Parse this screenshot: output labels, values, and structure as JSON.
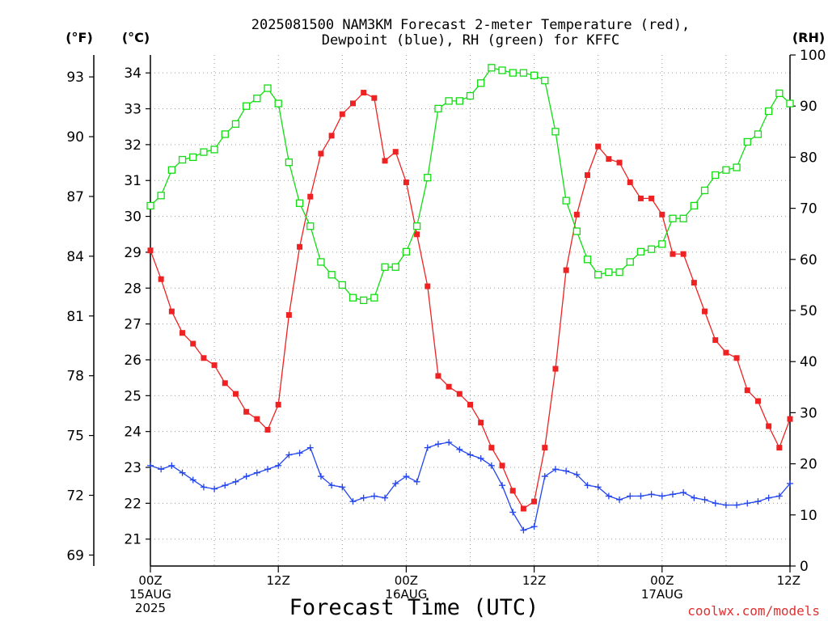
{
  "chart_data": {
    "type": "line",
    "title_lines": [
      "2025081500 NAM3KM Forecast 2-meter Temperature (red),",
      "Dewpoint (blue), RH (green) for KFFC"
    ],
    "xlabel": "Forecast Time (UTC)",
    "credit": "coolwx.com/models",
    "unit_labels": {
      "fahrenheit": "(°F)",
      "celsius": "(°C)",
      "rh": "(RH)"
    },
    "x_ticks": [
      {
        "hour": 0,
        "lines": [
          "00Z",
          "15AUG",
          "2025"
        ]
      },
      {
        "hour": 12,
        "lines": [
          "12Z"
        ]
      },
      {
        "hour": 24,
        "lines": [
          "00Z",
          "16AUG"
        ]
      },
      {
        "hour": 36,
        "lines": [
          "12Z"
        ]
      },
      {
        "hour": 48,
        "lines": [
          "00Z",
          "17AUG"
        ]
      },
      {
        "hour": 60,
        "lines": [
          "12Z"
        ]
      }
    ],
    "xlim": [
      0,
      60
    ],
    "ylim_celsius": [
      20.25,
      34.5
    ],
    "ylim_rh": [
      0,
      100
    ],
    "celsius_ticks": [
      21,
      22,
      23,
      24,
      25,
      26,
      27,
      28,
      29,
      30,
      31,
      32,
      33,
      34
    ],
    "fahrenheit_ticks": [
      69,
      72,
      75,
      78,
      81,
      84,
      87,
      90,
      93
    ],
    "rh_ticks": [
      0,
      10,
      20,
      30,
      40,
      50,
      60,
      70,
      80,
      90,
      100
    ],
    "grid": true,
    "series": [
      {
        "name": "Temperature (red)",
        "axis": "celsius",
        "color": "#ee2222",
        "marker": "filled-square",
        "x": [
          0,
          1,
          2,
          3,
          4,
          5,
          6,
          7,
          8,
          9,
          10,
          11,
          12,
          13,
          14,
          15,
          16,
          17,
          18,
          19,
          20,
          21,
          22,
          23,
          24,
          25,
          26,
          27,
          28,
          29,
          30,
          31,
          32,
          33,
          34,
          35,
          36,
          37,
          38,
          39,
          40,
          41,
          42,
          43,
          44,
          45,
          46,
          47,
          48,
          49,
          50,
          51,
          52,
          53,
          54,
          55,
          56,
          57,
          58,
          59,
          60
        ],
        "values": [
          29.05,
          28.25,
          27.35,
          26.75,
          26.45,
          26.05,
          25.85,
          25.35,
          25.05,
          24.55,
          24.35,
          24.05,
          24.75,
          27.25,
          29.15,
          30.55,
          31.75,
          32.25,
          32.85,
          33.15,
          33.45,
          33.3,
          31.55,
          31.8,
          30.95,
          29.5,
          28.05,
          25.55,
          25.25,
          25.05,
          24.75,
          24.25,
          23.55,
          23.05,
          22.35,
          21.85,
          22.05,
          23.55,
          25.75,
          28.5,
          30.05,
          31.15,
          31.95,
          31.6,
          31.5,
          30.95,
          30.5,
          30.5,
          30.05,
          28.95,
          28.95,
          28.15,
          27.35,
          26.55,
          26.2,
          26.05,
          25.15,
          24.85,
          24.15,
          23.55,
          24.35
        ]
      },
      {
        "name": "Dewpoint (blue)",
        "axis": "celsius",
        "color": "#2244ee",
        "marker": "plus",
        "x": [
          0,
          1,
          2,
          3,
          4,
          5,
          6,
          7,
          8,
          9,
          10,
          11,
          12,
          13,
          14,
          15,
          16,
          17,
          18,
          19,
          20,
          21,
          22,
          23,
          24,
          25,
          26,
          27,
          28,
          29,
          30,
          31,
          32,
          33,
          34,
          35,
          36,
          37,
          38,
          39,
          40,
          41,
          42,
          43,
          44,
          45,
          46,
          47,
          48,
          49,
          50,
          51,
          52,
          53,
          54,
          55,
          56,
          57,
          58,
          59,
          60
        ],
        "values": [
          23.05,
          22.95,
          23.05,
          22.85,
          22.65,
          22.45,
          22.4,
          22.5,
          22.6,
          22.75,
          22.85,
          22.95,
          23.05,
          23.35,
          23.4,
          23.55,
          22.75,
          22.5,
          22.45,
          22.05,
          22.15,
          22.2,
          22.15,
          22.55,
          22.75,
          22.6,
          23.55,
          23.65,
          23.7,
          23.5,
          23.35,
          23.25,
          23.05,
          22.5,
          21.75,
          21.25,
          21.35,
          22.75,
          22.95,
          22.9,
          22.8,
          22.5,
          22.45,
          22.2,
          22.1,
          22.2,
          22.2,
          22.25,
          22.2,
          22.25,
          22.3,
          22.15,
          22.1,
          22.0,
          21.95,
          21.95,
          22.0,
          22.05,
          22.15,
          22.2,
          22.55
        ]
      },
      {
        "name": "RH (green)",
        "axis": "rh",
        "color": "#11dd11",
        "marker": "open-square",
        "x": [
          0,
          1,
          2,
          3,
          4,
          5,
          6,
          7,
          8,
          9,
          10,
          11,
          12,
          13,
          14,
          15,
          16,
          17,
          18,
          19,
          20,
          21,
          22,
          23,
          24,
          25,
          26,
          27,
          28,
          29,
          30,
          31,
          32,
          33,
          34,
          35,
          36,
          37,
          38,
          39,
          40,
          41,
          42,
          43,
          44,
          45,
          46,
          47,
          48,
          49,
          50,
          51,
          52,
          53,
          54,
          55,
          56,
          57,
          58,
          59,
          60
        ],
        "values": [
          70.5,
          72.5,
          77.5,
          79.5,
          80,
          81,
          81.5,
          84.5,
          86.5,
          90,
          91.5,
          93.5,
          90.5,
          79,
          71,
          66.5,
          59.5,
          57,
          55,
          52.5,
          52,
          52.5,
          58.5,
          58.5,
          61.5,
          66.5,
          76,
          89.5,
          91,
          91,
          92,
          94.5,
          97.5,
          97,
          96.5,
          96.5,
          96,
          95,
          85,
          71.5,
          65.5,
          60,
          57,
          57.5,
          57.5,
          59.5,
          61.5,
          62,
          63,
          68,
          68,
          70.5,
          73.5,
          76.5,
          77.5,
          78,
          83,
          84.5,
          89,
          92.5,
          90.5
        ]
      }
    ]
  }
}
